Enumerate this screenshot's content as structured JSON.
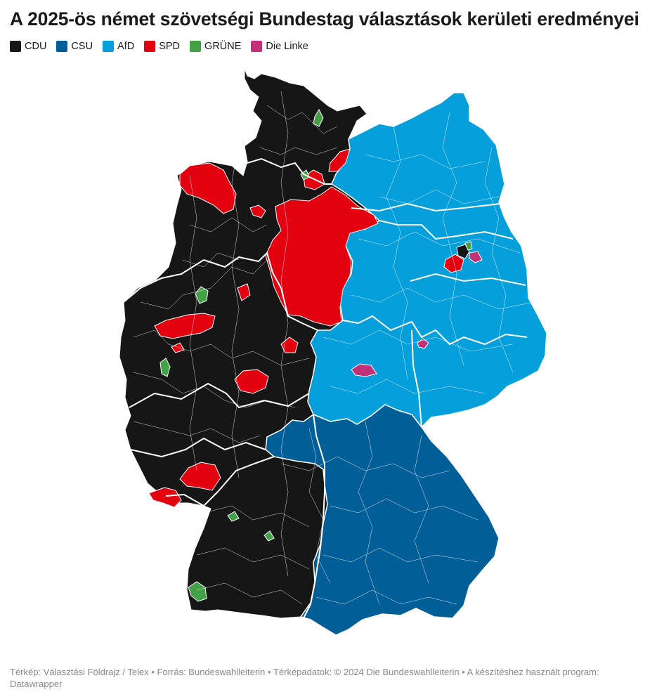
{
  "title": "A 2025-ös német szövetségi Bundestag választások kerületi eredményei",
  "legend": [
    {
      "label": "CDU",
      "color": "#161616"
    },
    {
      "label": "CSU",
      "color": "#025E96"
    },
    {
      "label": "AfD",
      "color": "#05A0DB"
    },
    {
      "label": "SPD",
      "color": "#E3000F"
    },
    {
      "label": "GRÜNE",
      "color": "#43A047"
    },
    {
      "label": "Die Linke",
      "color": "#C2307A"
    }
  ],
  "footer": {
    "text": "Térkép: Választási Földrajz / Telex • Forrás: Bundeswahlleiterin • Térképadatok: © 2024 Die Bundeswahlleiterin  • A készítéshez használt program: Datawrapper"
  },
  "colors": {
    "cdu": "#161616",
    "csu": "#025E96",
    "afd": "#05A0DB",
    "spd": "#E3000F",
    "grune": "#43A047",
    "linke": "#C2307A",
    "border": "#ffffff"
  }
}
